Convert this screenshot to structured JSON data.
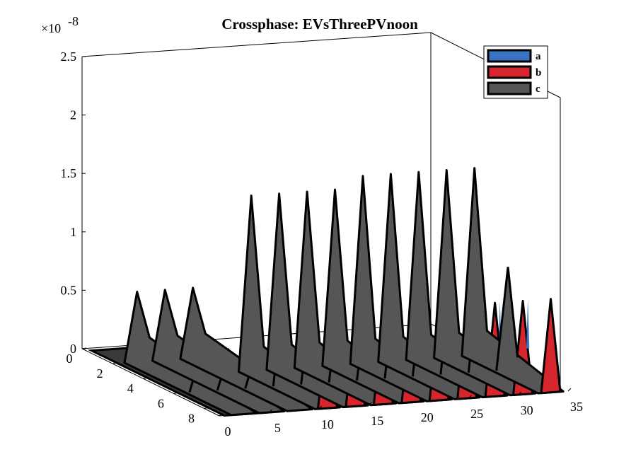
{
  "chart_data": {
    "type": "area",
    "title": "Crossphase: EVsThreePVnoon",
    "y_multiplier": "×10",
    "y_multiplier_exponent": "-8",
    "x_ticks": [
      "0",
      "5",
      "10",
      "15",
      "20",
      "25",
      "30",
      "35"
    ],
    "depth_ticks": [
      "0",
      "2",
      "4",
      "6",
      "8"
    ],
    "z_ticks": [
      "0",
      "0.5",
      "1",
      "1.5",
      "2",
      "2.5"
    ],
    "x_range": [
      0,
      35
    ],
    "depth_range": [
      0,
      9
    ],
    "z_range": [
      0,
      2.5
    ],
    "legend_position": "top-right",
    "series": [
      {
        "name": "a",
        "color": "#3b73c4",
        "peaks": [
          0,
          0,
          0,
          0.6,
          0.6,
          0.6,
          0.6,
          0.7,
          0.7,
          0.7,
          0.7,
          0.7
        ]
      },
      {
        "name": "b",
        "color": "#d4262c",
        "peaks": [
          0,
          0,
          0,
          0.75,
          0.75,
          0.75,
          0.75,
          0.8,
          0.8,
          0.8,
          0.8,
          0.8
        ]
      },
      {
        "name": "c",
        "color": "#565656",
        "peaks": [
          0.6,
          0.6,
          0.6,
          1.5,
          1.5,
          1.5,
          1.5,
          1.6,
          1.6,
          1.6,
          1.6,
          1.6
        ]
      }
    ]
  }
}
